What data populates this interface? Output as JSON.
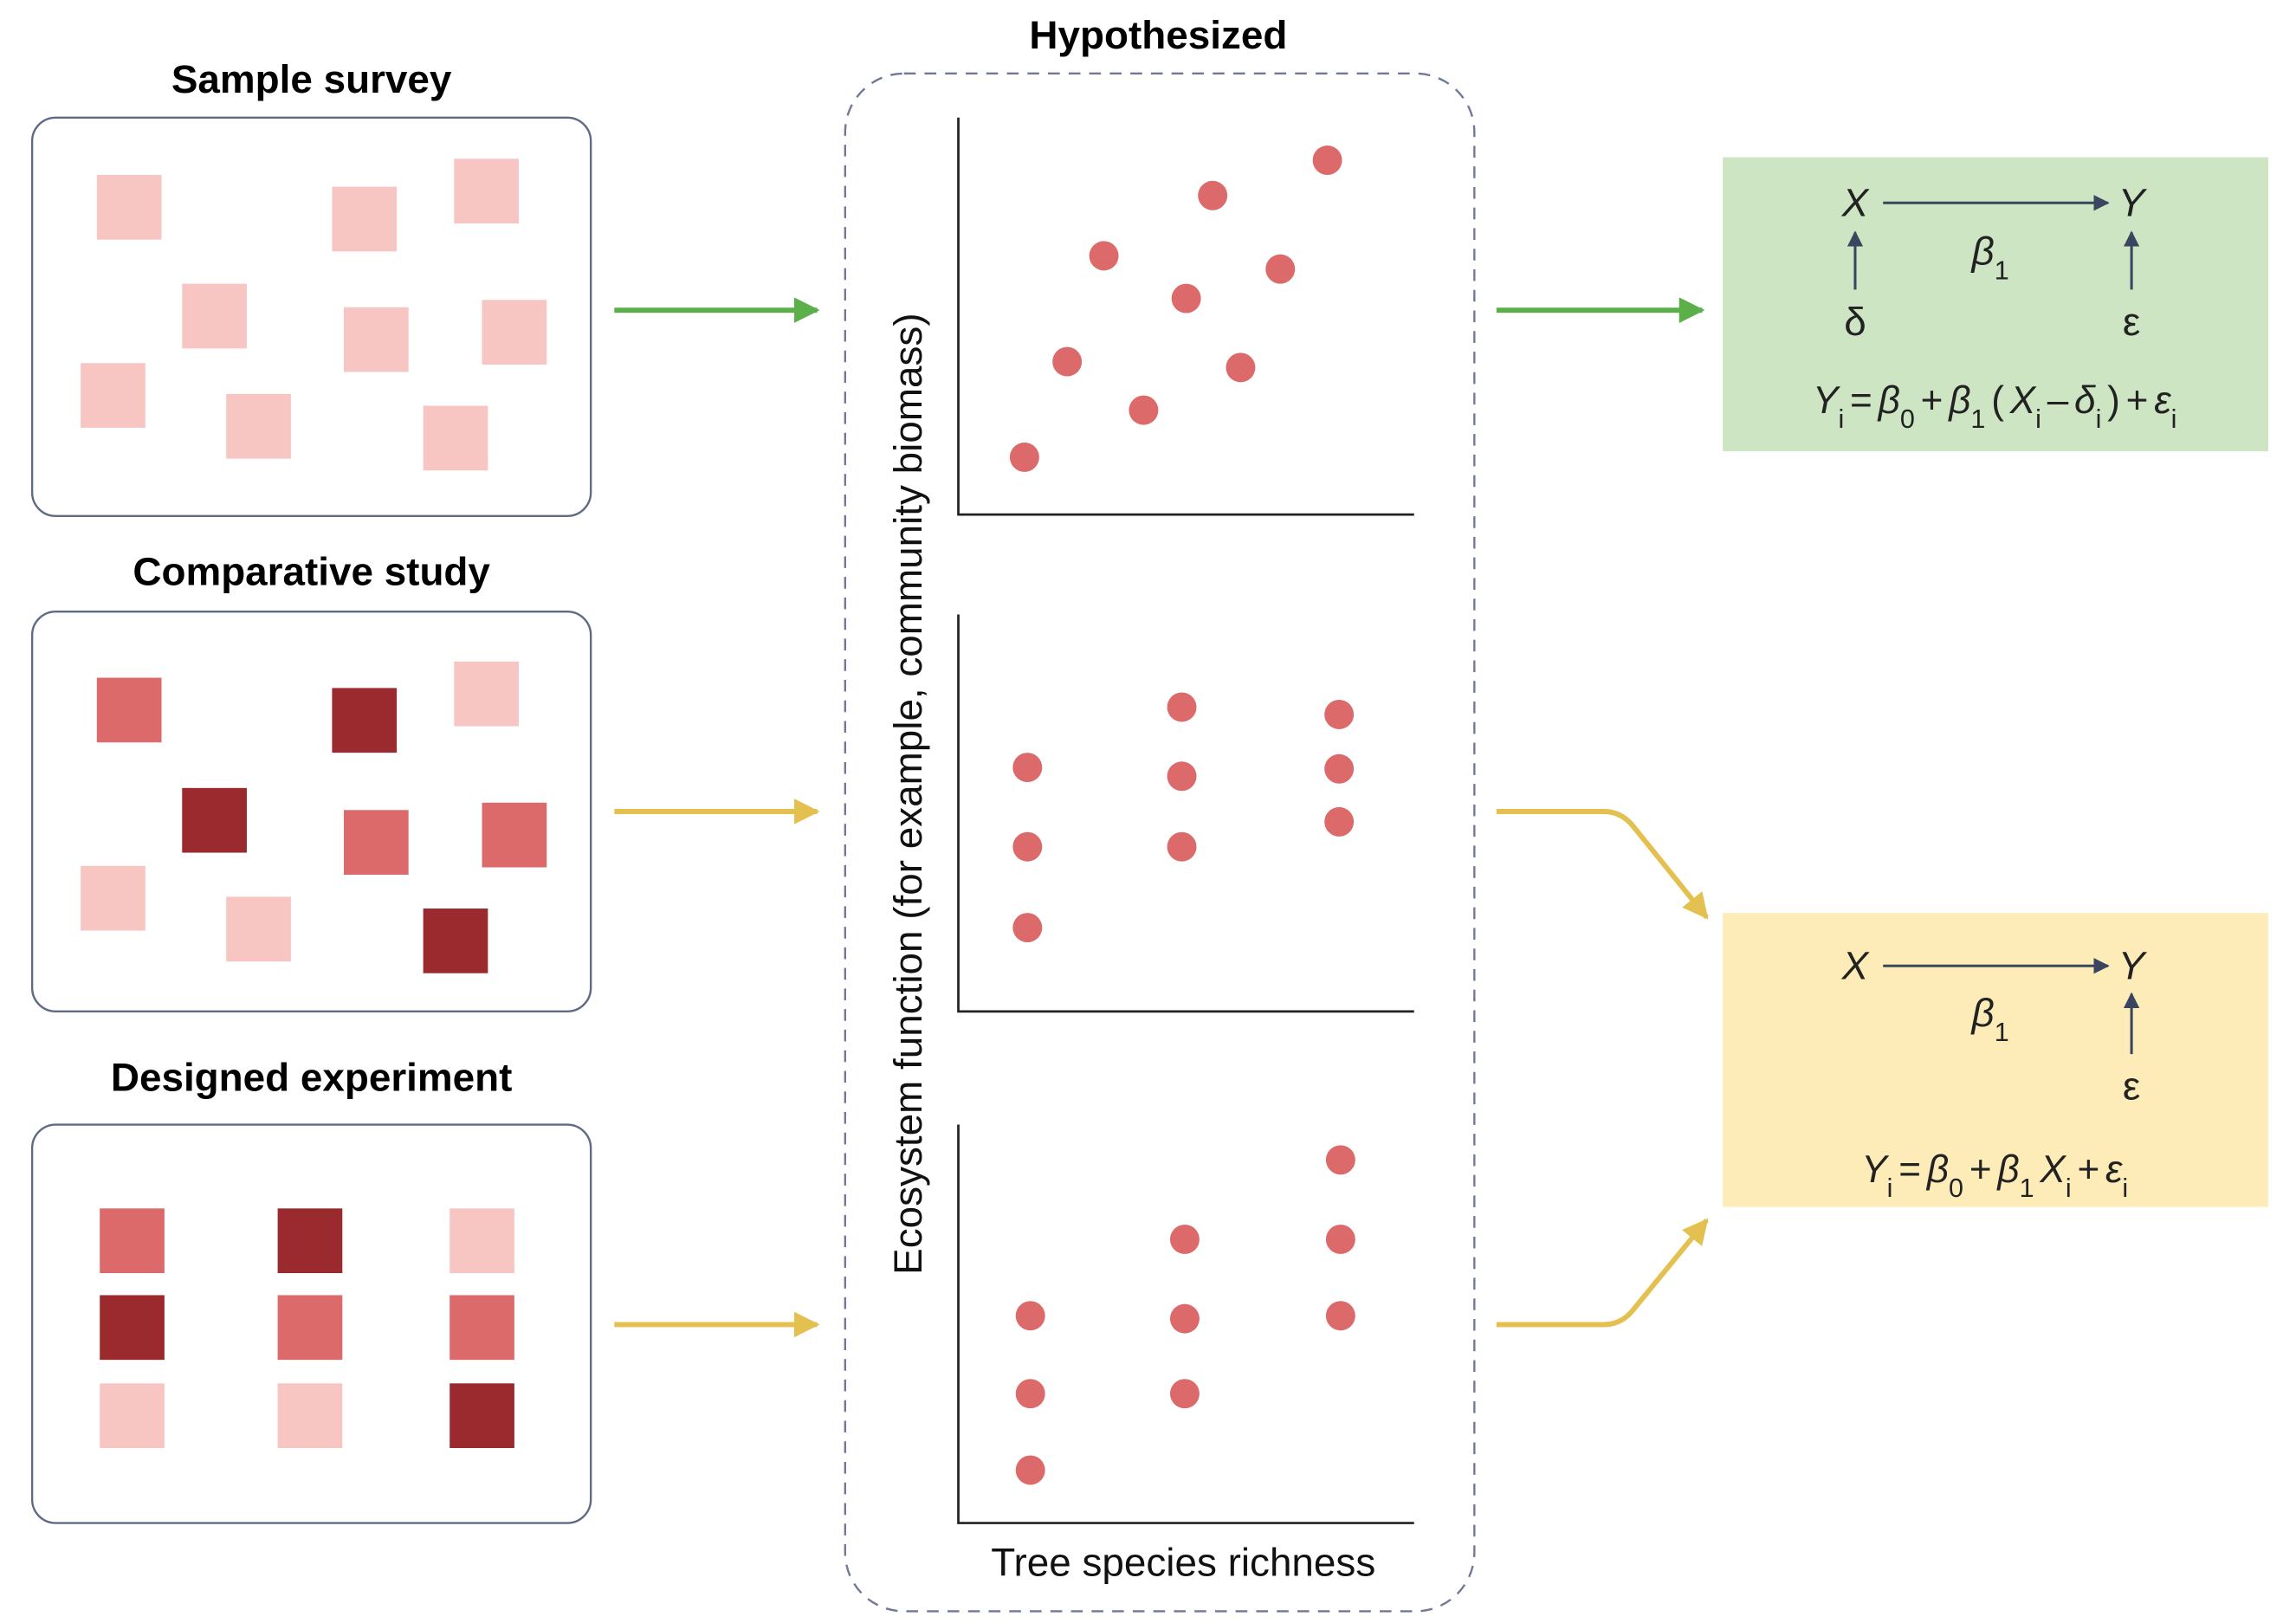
{
  "panels": [
    {
      "title": "Sample survey"
    },
    {
      "title": "Comparative study"
    },
    {
      "title": "Designed experiment"
    }
  ],
  "center": {
    "title": "Hypothesized",
    "y_label": "Ecosystem function (for example, community biomass)",
    "x_label": "Tree species richness"
  },
  "models": [
    {
      "x": "X",
      "y": "Y",
      "coef": [
        "β",
        "1"
      ],
      "x_error": "δ",
      "y_error": "ε",
      "equation": [
        [
          "Y",
          "i"
        ],
        "=",
        [
          "β",
          "0"
        ],
        "+",
        [
          "β",
          "1"
        ],
        "(",
        [
          "X",
          "i"
        ],
        "–",
        [
          "δ",
          "i"
        ],
        ")",
        "+",
        [
          "ε",
          "i"
        ]
      ]
    },
    {
      "x": "X",
      "y": "Y",
      "coef": [
        "β",
        "1"
      ],
      "y_error": "ε",
      "equation": [
        [
          "Y",
          "i"
        ],
        "=",
        [
          "β",
          "0"
        ],
        "+",
        [
          "β",
          "1"
        ],
        [
          "X",
          "i"
        ],
        "+",
        [
          "ε",
          "i"
        ]
      ]
    }
  ]
}
